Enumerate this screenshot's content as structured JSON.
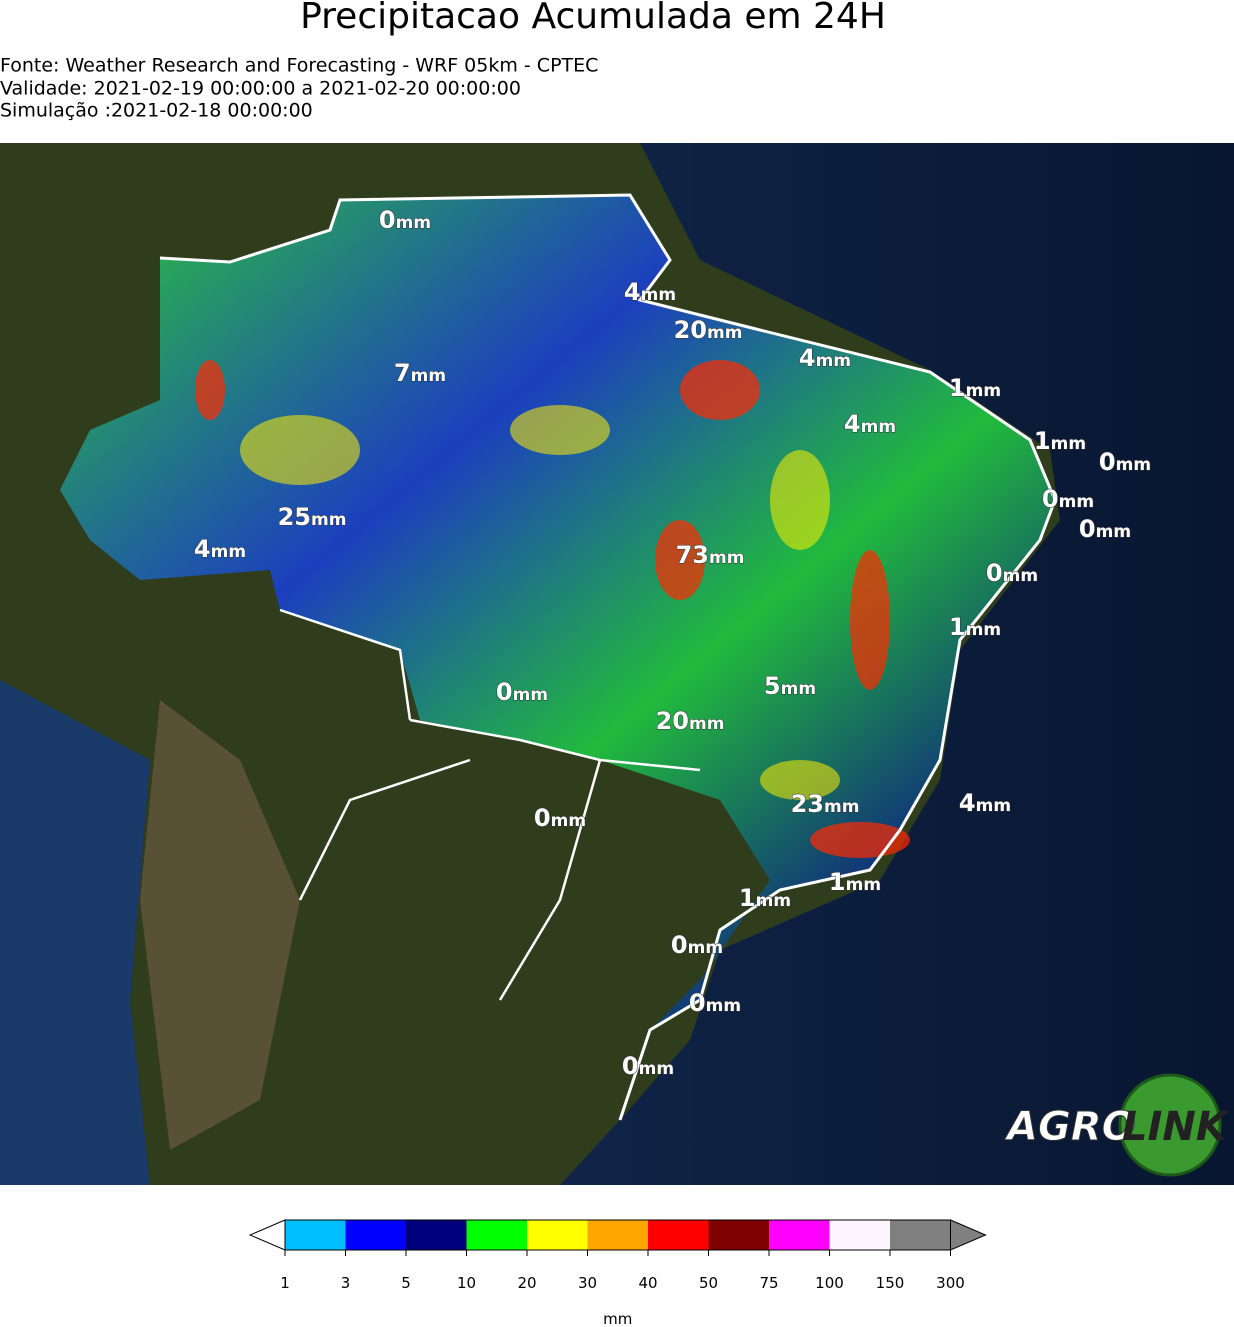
{
  "header": {
    "title": "Precipitacao Acumulada em 24H",
    "lines": [
      "Fonte: Weather Research and Forecasting - WRF 05km - CPTEC",
      "Validade: 2021-02-19 00:00:00 a 2021-02-20 00:00:00",
      "Simulação :2021-02-18 00:00:00"
    ]
  },
  "map": {
    "labels": [
      {
        "value": 0,
        "unit": "mm"
      },
      {
        "value": 4,
        "unit": "mm"
      },
      {
        "value": 20,
        "unit": "mm"
      },
      {
        "value": 4,
        "unit": "mm"
      },
      {
        "value": 1,
        "unit": "mm"
      },
      {
        "value": 7,
        "unit": "mm"
      },
      {
        "value": 4,
        "unit": "mm"
      },
      {
        "value": 1,
        "unit": "mm"
      },
      {
        "value": 0,
        "unit": "mm"
      },
      {
        "value": 0,
        "unit": "mm"
      },
      {
        "value": 0,
        "unit": "mm"
      },
      {
        "value": 25,
        "unit": "mm"
      },
      {
        "value": 4,
        "unit": "mm"
      },
      {
        "value": 73,
        "unit": "mm"
      },
      {
        "value": 0,
        "unit": "mm"
      },
      {
        "value": 1,
        "unit": "mm"
      },
      {
        "value": 5,
        "unit": "mm"
      },
      {
        "value": 0,
        "unit": "mm"
      },
      {
        "value": 20,
        "unit": "mm"
      },
      {
        "value": 23,
        "unit": "mm"
      },
      {
        "value": 4,
        "unit": "mm"
      },
      {
        "value": 0,
        "unit": "mm"
      },
      {
        "value": 1,
        "unit": "mm"
      },
      {
        "value": 1,
        "unit": "mm"
      },
      {
        "value": 0,
        "unit": "mm"
      },
      {
        "value": 0,
        "unit": "mm"
      },
      {
        "value": 0,
        "unit": "mm"
      }
    ]
  },
  "colorbar": {
    "ticks": [
      1,
      3,
      5,
      10,
      20,
      30,
      40,
      50,
      75,
      100,
      150,
      300
    ],
    "colors": [
      "#00bfff",
      "#0000ff",
      "#00007f",
      "#00ff00",
      "#ffff00",
      "#ffa500",
      "#ff0000",
      "#7f0000",
      "#ff00ff",
      "#fff5ff",
      "#808080"
    ],
    "under_color": "#ffffff",
    "over_color": "#808080",
    "label": "mm"
  },
  "logo": {
    "left": "AGRO",
    "right": "LINK"
  }
}
